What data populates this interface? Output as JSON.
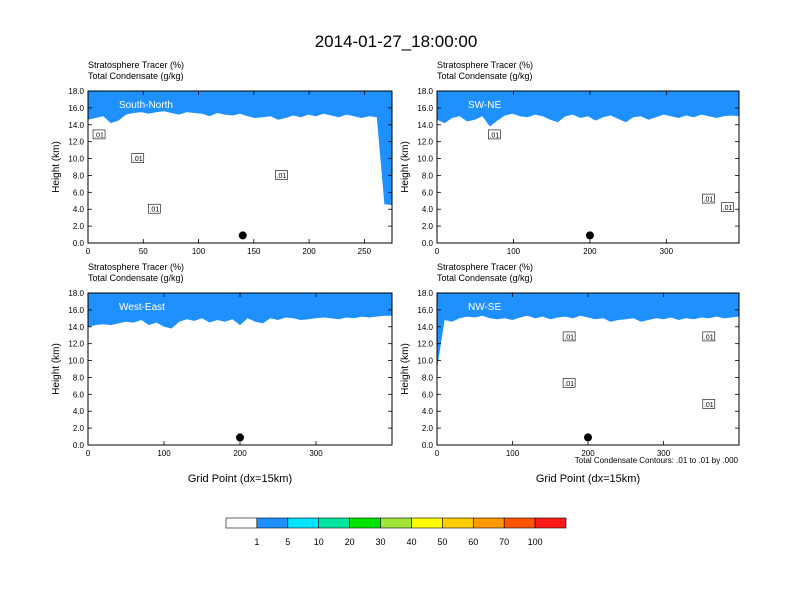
{
  "title": "2014-01-27_18:00:00",
  "colors": [
    "#ffffff",
    "#1e90ff",
    "#00e5ff",
    "#00e5a0",
    "#00e500",
    "#a0e53a",
    "#ffff00",
    "#ffcc00",
    "#ff9900",
    "#ff5500",
    "#ff1a1a"
  ],
  "colorbar": {
    "labels": [
      "1",
      "5",
      "10",
      "20",
      "30",
      "40",
      "50",
      "60",
      "70",
      "100"
    ]
  },
  "contour_note": "Total Condensate Contours: .01 to .01 by .000",
  "chart_data": [
    {
      "type": "heatmap",
      "line1": "Stratosphere Tracer   (%)",
      "line2": "Total Condensate   (g/kg)",
      "panel_label": "South-North",
      "ylabel": "Height (km)",
      "xlabel": "",
      "xlim": [
        0,
        275
      ],
      "ylim": [
        0,
        18
      ],
      "xticks": [
        0,
        50,
        100,
        150,
        200,
        250
      ],
      "yticks": [
        "0.0",
        "2.0",
        "4.0",
        "6.0",
        "8.0",
        "10.0",
        "12.0",
        "14.0",
        "16.0",
        "18.0"
      ],
      "marker_x": 140,
      "tracer_bottom_km": [
        14.6,
        14.8,
        15.0,
        14.2,
        14.5,
        15.2,
        15.4,
        15.5,
        15.3,
        15.5,
        15.6,
        15.4,
        15.2,
        15.5,
        15.4,
        15.3,
        15.0,
        15.4,
        15.2,
        15.1,
        15.3,
        15.0,
        14.8,
        14.9,
        15.0,
        14.6,
        14.8,
        15.1,
        14.9,
        15.2,
        15.0,
        15.3,
        15.1,
        14.9,
        15.2,
        15.0,
        14.8,
        15.0,
        14.9,
        4.6,
        4.5
      ],
      "contour_labels": [
        [
          10,
          12.8
        ],
        [
          45,
          10.0
        ],
        [
          60,
          4.0
        ],
        [
          175,
          8.0
        ]
      ]
    },
    {
      "type": "heatmap",
      "line1": "Stratosphere Tracer   (%)",
      "line2": "Total Condensate   (g/kg)",
      "panel_label": "SW-NE",
      "ylabel": "Height (km)",
      "xlabel": "",
      "xlim": [
        0,
        395
      ],
      "ylim": [
        0,
        18
      ],
      "xticks": [
        0,
        100,
        200,
        300
      ],
      "yticks": [
        "0.0",
        "2.0",
        "4.0",
        "6.0",
        "8.0",
        "10.0",
        "12.0",
        "14.0",
        "16.0",
        "18.0"
      ],
      "marker_x": 200,
      "tracer_bottom_km": [
        14.6,
        14.2,
        14.8,
        15.0,
        14.4,
        14.6,
        15.0,
        13.8,
        14.5,
        15.1,
        15.3,
        15.0,
        14.9,
        15.2,
        15.0,
        14.6,
        14.3,
        15.0,
        15.2,
        14.8,
        15.0,
        14.5,
        14.9,
        15.1,
        14.7,
        14.3,
        14.9,
        15.0,
        14.6,
        14.9,
        15.2,
        15.0,
        14.8,
        15.1,
        14.9,
        15.2,
        15.0,
        14.8,
        15.0,
        15.1,
        15.0
      ],
      "contour_labels": [
        [
          75,
          12.8
        ],
        [
          355,
          5.2
        ],
        [
          380,
          4.2
        ]
      ]
    },
    {
      "type": "heatmap",
      "line1": "Stratosphere Tracer   (%)",
      "line2": "Total Condensate   (g/kg)",
      "panel_label": "West-East",
      "ylabel": "Height (km)",
      "xlabel": "Grid Point (dx=15km)",
      "xlim": [
        0,
        400
      ],
      "ylim": [
        0,
        18
      ],
      "xticks": [
        0,
        100,
        200,
        300
      ],
      "yticks": [
        "0.0",
        "2.0",
        "4.0",
        "6.0",
        "8.0",
        "10.0",
        "12.0",
        "14.0",
        "16.0",
        "18.0"
      ],
      "marker_x": 200,
      "tracer_bottom_km": [
        14.0,
        14.2,
        14.3,
        14.2,
        14.4,
        14.6,
        14.5,
        14.8,
        14.2,
        14.5,
        14.0,
        13.8,
        14.6,
        14.9,
        14.7,
        15.0,
        14.5,
        14.8,
        14.6,
        14.9,
        14.2,
        15.0,
        14.6,
        14.4,
        15.0,
        14.8,
        15.1,
        15.0,
        14.8,
        14.9,
        15.0,
        15.1,
        15.0,
        14.9,
        15.1,
        15.0,
        15.2,
        15.1,
        15.2,
        15.3,
        15.3
      ],
      "contour_labels": []
    },
    {
      "type": "heatmap",
      "line1": "Stratosphere Tracer   (%)",
      "line2": "Total Condensate   (g/kg)",
      "panel_label": "NW-SE",
      "ylabel": "Height (km)",
      "xlabel": "Grid Point (dx=15km)",
      "xlim": [
        0,
        400
      ],
      "ylim": [
        0,
        18
      ],
      "xticks": [
        0,
        100,
        200,
        300
      ],
      "yticks": [
        "0.0",
        "2.0",
        "4.0",
        "6.0",
        "8.0",
        "10.0",
        "12.0",
        "14.0",
        "16.0",
        "18.0"
      ],
      "marker_x": 200,
      "tracer_bottom_km": [
        9.0,
        14.8,
        14.6,
        15.0,
        15.2,
        15.1,
        15.3,
        15.0,
        14.9,
        15.0,
        14.8,
        15.1,
        15.3,
        15.0,
        15.2,
        14.9,
        15.1,
        15.2,
        15.0,
        15.3,
        15.1,
        14.9,
        15.0,
        14.6,
        14.8,
        14.9,
        15.0,
        14.6,
        14.8,
        15.0,
        14.9,
        15.1,
        14.8,
        15.0,
        14.9,
        15.1,
        15.0,
        15.2,
        15.0,
        15.1,
        15.2
      ],
      "contour_labels": [
        [
          175,
          12.8
        ],
        [
          175,
          7.3
        ],
        [
          360,
          12.8
        ],
        [
          360,
          4.8
        ]
      ]
    }
  ]
}
